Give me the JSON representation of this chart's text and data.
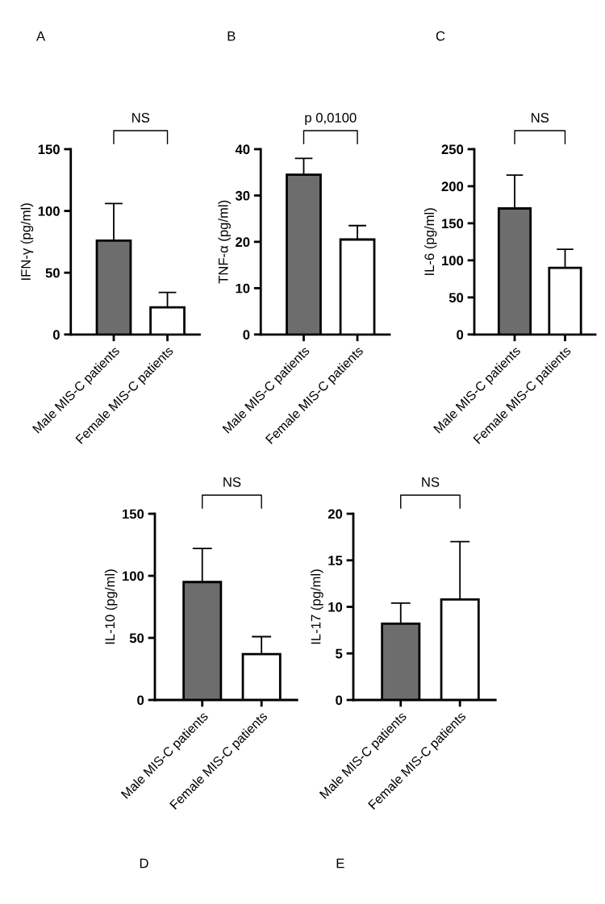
{
  "chart_data": [
    {
      "type": "bar",
      "title": "A",
      "ylabel": "IFN-γ (pg/ml)",
      "categories": [
        "Male MIS-C patients",
        "Female MIS-C patients"
      ],
      "values": [
        76,
        22
      ],
      "errors": [
        [
          76,
          106
        ],
        [
          22,
          34
        ]
      ],
      "colors": [
        "#6d6d6d",
        "#ffffff"
      ],
      "ylim": [
        0,
        150
      ],
      "yticks": [
        0,
        50,
        100,
        150
      ],
      "grid": false,
      "annotations": [
        "NS"
      ]
    },
    {
      "type": "bar",
      "title": "B",
      "ylabel": "TNF-α (pg/ml)",
      "categories": [
        "Male MIS-C patients",
        "Female MIS-C patients"
      ],
      "values": [
        34.5,
        20.5
      ],
      "errors": [
        [
          34.5,
          38
        ],
        [
          20.5,
          23.5
        ]
      ],
      "colors": [
        "#6d6d6d",
        "#ffffff"
      ],
      "ylim": [
        0,
        40
      ],
      "yticks": [
        0,
        10,
        20,
        30,
        40
      ],
      "grid": false,
      "annotations": [
        "p 0,0100"
      ]
    },
    {
      "type": "bar",
      "title": "C",
      "ylabel": "IL-6 (pg/ml)",
      "categories": [
        "Male MIS-C patients",
        "Female MIS-C patients"
      ],
      "values": [
        170,
        90
      ],
      "errors": [
        [
          170,
          215
        ],
        [
          90,
          115
        ]
      ],
      "colors": [
        "#6d6d6d",
        "#ffffff"
      ],
      "ylim": [
        0,
        250
      ],
      "yticks": [
        0,
        50,
        100,
        150,
        200,
        250
      ],
      "grid": false,
      "annotations": [
        "NS"
      ]
    },
    {
      "type": "bar",
      "title": "D",
      "ylabel": "IL-10 (pg/ml)",
      "categories": [
        "Male MIS-C patients",
        "Female MIS-C patients"
      ],
      "values": [
        95,
        37
      ],
      "errors": [
        [
          95,
          122
        ],
        [
          37,
          51
        ]
      ],
      "colors": [
        "#6d6d6d",
        "#ffffff"
      ],
      "ylim": [
        0,
        150
      ],
      "yticks": [
        0,
        50,
        100,
        150
      ],
      "grid": false,
      "annotations": [
        "NS"
      ]
    },
    {
      "type": "bar",
      "title": "E",
      "ylabel": "IL-17 (pg/ml)",
      "categories": [
        "Male MIS-C patients",
        "Female MIS-C patients"
      ],
      "values": [
        8.2,
        10.8
      ],
      "errors": [
        [
          8.2,
          10.4
        ],
        [
          10.8,
          17
        ]
      ],
      "colors": [
        "#6d6d6d",
        "#ffffff"
      ],
      "ylim": [
        0,
        20
      ],
      "yticks": [
        0,
        5,
        10,
        15,
        20
      ],
      "grid": false,
      "annotations": [
        "NS"
      ]
    }
  ]
}
